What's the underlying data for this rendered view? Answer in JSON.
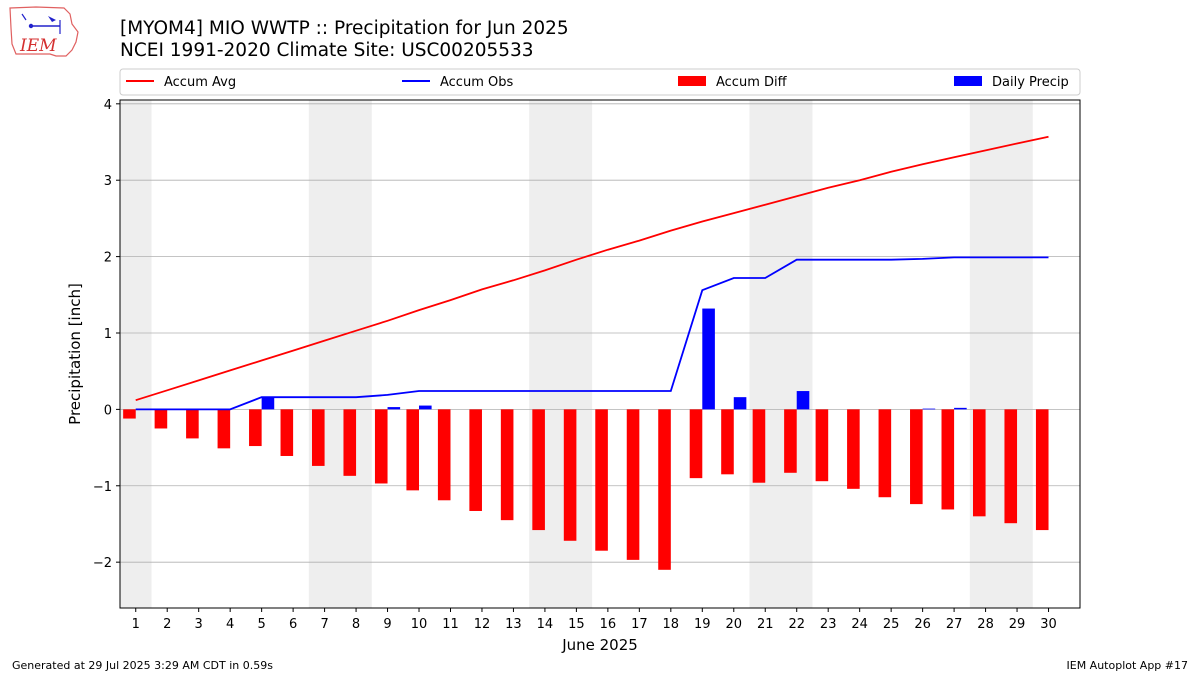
{
  "header": {
    "title_line1": "[MYOM4] MIO WWTP :: Precipitation for Jun 2025",
    "title_line2": "NCEI 1991-2020 Climate Site: USC00205533"
  },
  "logo": {
    "text": "IEM"
  },
  "footer": {
    "generated": "Generated at 29 Jul 2025 3:29 AM CDT in 0.59s",
    "app": "IEM Autoplot App #17"
  },
  "colors": {
    "accum_avg": "#ff0000",
    "accum_obs": "#0000ff",
    "accum_diff": "#ff0000",
    "daily_precip": "#0000ff",
    "weekend_shade": "#eeeeee",
    "grid": "#b0b0b0"
  },
  "chart_data": {
    "type": "bar",
    "xlabel": "June 2025",
    "ylabel": "Precipitation [inch]",
    "ylim": [
      -2.6,
      4.05
    ],
    "xlim": [
      0.5,
      31
    ],
    "yticks": [
      4,
      3,
      2,
      1,
      0,
      -1,
      -2
    ],
    "ytick_labels": [
      "4",
      "3",
      "2",
      "1",
      "0",
      "−1",
      "−2"
    ],
    "days": [
      1,
      2,
      3,
      4,
      5,
      6,
      7,
      8,
      9,
      10,
      11,
      12,
      13,
      14,
      15,
      16,
      17,
      18,
      19,
      20,
      21,
      22,
      23,
      24,
      25,
      26,
      27,
      28,
      29,
      30
    ],
    "grid": "horizontal",
    "legend_position": "top",
    "weekend_spans": [
      [
        0.5,
        1.5
      ],
      [
        6.5,
        8.5
      ],
      [
        13.5,
        15.5
      ],
      [
        20.5,
        22.5
      ],
      [
        27.5,
        29.5
      ]
    ],
    "series": [
      {
        "name": "Accum Avg",
        "kind": "line",
        "values": [
          0.12,
          0.25,
          0.38,
          0.51,
          0.64,
          0.77,
          0.9,
          1.03,
          1.16,
          1.3,
          1.43,
          1.57,
          1.69,
          1.82,
          1.96,
          2.09,
          2.21,
          2.34,
          2.46,
          2.57,
          2.68,
          2.79,
          2.9,
          3.0,
          3.11,
          3.21,
          3.3,
          3.39,
          3.48,
          3.57
        ]
      },
      {
        "name": "Accum Obs",
        "kind": "line",
        "values": [
          0.0,
          0.0,
          0.0,
          0.0,
          0.16,
          0.16,
          0.16,
          0.16,
          0.19,
          0.24,
          0.24,
          0.24,
          0.24,
          0.24,
          0.24,
          0.24,
          0.24,
          0.24,
          1.56,
          1.72,
          1.72,
          1.96,
          1.96,
          1.96,
          1.96,
          1.97,
          1.99,
          1.99,
          1.99,
          1.99
        ]
      },
      {
        "name": "Accum Diff",
        "kind": "bar",
        "values": [
          -0.12,
          -0.25,
          -0.38,
          -0.51,
          -0.48,
          -0.61,
          -0.74,
          -0.87,
          -0.97,
          -1.06,
          -1.19,
          -1.33,
          -1.45,
          -1.58,
          -1.72,
          -1.85,
          -1.97,
          -2.1,
          -0.9,
          -0.85,
          -0.96,
          -0.83,
          -0.94,
          -1.04,
          -1.15,
          -1.24,
          -1.31,
          -1.4,
          -1.49,
          -1.58
        ]
      },
      {
        "name": "Daily Precip",
        "kind": "bar",
        "values": [
          0,
          0,
          0,
          0,
          0.16,
          0,
          0,
          0,
          0.03,
          0.05,
          0,
          0,
          0,
          0,
          0,
          0,
          0,
          0,
          1.32,
          0.16,
          0,
          0.24,
          0,
          0,
          0,
          0.01,
          0.02,
          0,
          0,
          0
        ]
      }
    ]
  }
}
